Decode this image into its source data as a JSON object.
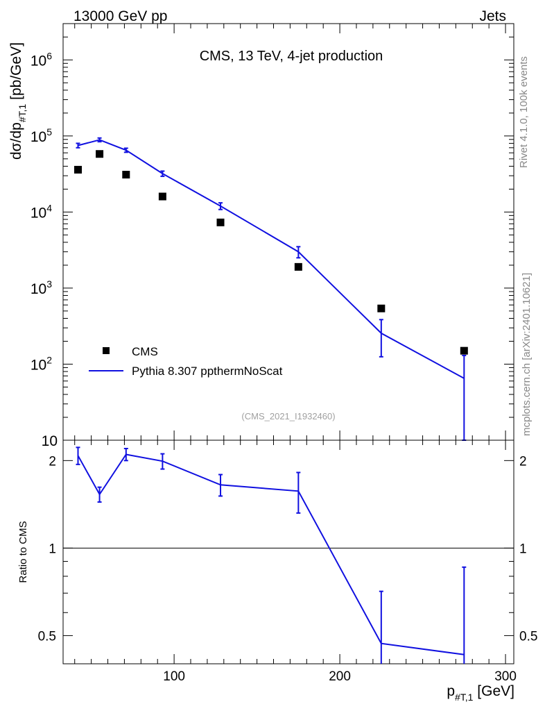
{
  "header": {
    "left": "13000 GeV pp",
    "right": "Jets"
  },
  "side": {
    "rivet": "Rivet 4.1.0,  100k events",
    "mcplots": "mcplots.cern.ch [arXiv:2401.10621]"
  },
  "colors": {
    "data": "#000000",
    "mc": "#1010e0",
    "ref_line": "#000000"
  },
  "chart_data": [
    {
      "type": "scatter",
      "title": "CMS, 13 TeV, 4-jet production",
      "analysis_tag": "(CMS_2021_I1932460)",
      "ylabel": "dσ/dp_{#T,1} [pb/GeV]",
      "yscale": "log",
      "xlim": [
        33,
        305
      ],
      "ylim": [
        10,
        3000000
      ],
      "y_ticks": [
        {
          "value": 10,
          "label": "10"
        },
        {
          "value": 100,
          "label": "10^2"
        },
        {
          "value": 1000,
          "label": "10^3"
        },
        {
          "value": 10000,
          "label": "10^4"
        },
        {
          "value": 100000,
          "label": "10^5"
        },
        {
          "value": 1000000,
          "label": "10^6"
        }
      ],
      "legend": [
        {
          "label": "CMS",
          "style": "marker"
        },
        {
          "label": "Pythia 8.307 ppthermNoScat",
          "style": "line"
        }
      ],
      "series": [
        {
          "name": "CMS",
          "x": [
            42,
            55,
            71,
            93,
            128,
            175,
            225,
            275
          ],
          "y": [
            36000,
            58000,
            31000,
            16000,
            7300,
            1900,
            540,
            150
          ]
        },
        {
          "name": "Pythia 8.307 ppthermNoScat",
          "x": [
            42,
            55,
            71,
            93,
            128,
            175,
            225,
            275
          ],
          "y": [
            75000,
            89000,
            65000,
            32000,
            12000,
            3000,
            255,
            65
          ],
          "yerr": [
            5000,
            5000,
            4000,
            2500,
            1200,
            500,
            130,
            65
          ]
        }
      ]
    },
    {
      "type": "line",
      "ylabel": "Ratio to CMS",
      "xlabel": "p_{#T,1} [GeV]",
      "xlim": [
        33,
        305
      ],
      "ylim": [
        0.4,
        2.35
      ],
      "reference": 1,
      "y_tick_labels": [
        {
          "value": 0.5,
          "label": "0.5"
        },
        {
          "value": 1,
          "label": "1"
        },
        {
          "value": 2,
          "label": "2"
        }
      ],
      "x_tick_labels": [
        {
          "value": 100,
          "label": "100"
        },
        {
          "value": 200,
          "label": "200"
        },
        {
          "value": 300,
          "label": "300"
        }
      ],
      "series": [
        {
          "name": "Pythia 8.307 ppthermNoScat",
          "x": [
            42,
            55,
            71,
            93,
            128,
            175,
            225,
            275
          ],
          "y": [
            2.08,
            1.53,
            2.1,
            1.99,
            1.65,
            1.57,
            0.47,
            0.43
          ],
          "yerr": [
            0.14,
            0.09,
            0.1,
            0.12,
            0.14,
            0.25,
            0.24,
            0.43
          ]
        }
      ]
    }
  ]
}
